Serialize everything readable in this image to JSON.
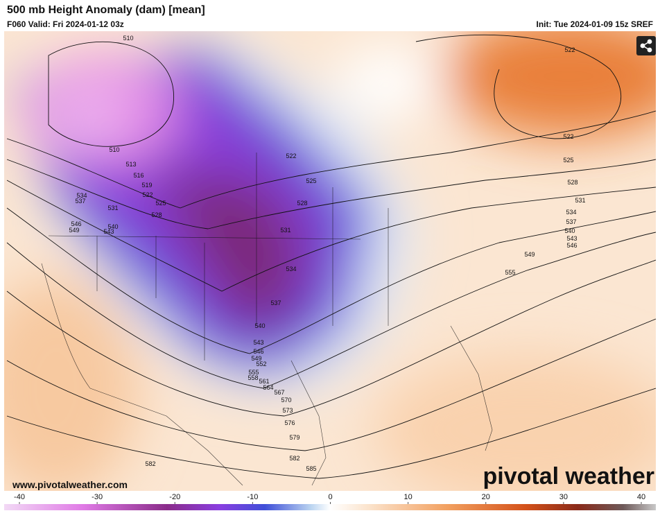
{
  "header": {
    "title": "500 mb Height Anomaly (dam) [mean]",
    "valid": "F060 Valid: Fri 2024-01-12 03z",
    "init": "Init: Tue 2024-01-09 15z SREF"
  },
  "map": {
    "contour_labels": [
      510,
      510,
      513,
      516,
      519,
      522,
      522,
      522,
      522,
      525,
      525,
      525,
      528,
      528,
      528,
      531,
      531,
      531,
      534,
      534,
      534,
      537,
      537,
      537,
      540,
      540,
      540,
      543,
      543,
      543,
      546,
      546,
      546,
      549,
      549,
      549,
      552,
      555,
      555,
      558,
      561,
      564,
      567,
      570,
      573,
      576,
      579,
      582,
      582,
      585
    ],
    "url": "www.pivotalweather.com",
    "watermark": "pivotal weather"
  },
  "colorbar": {
    "range": [
      -40,
      40
    ],
    "ticks": [
      -40,
      -30,
      -20,
      -10,
      0,
      10,
      20,
      30,
      40
    ]
  }
}
